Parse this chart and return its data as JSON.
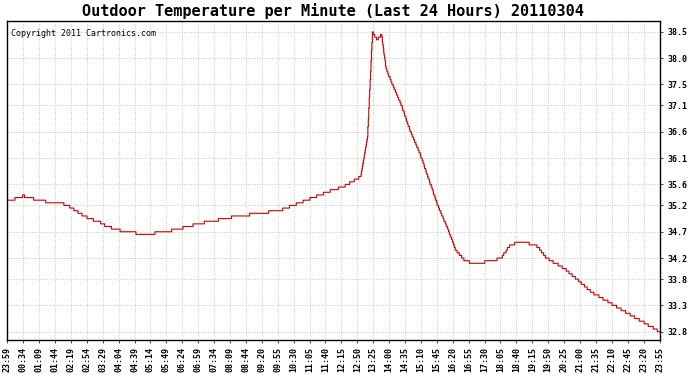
{
  "title": "Outdoor Temperature per Minute (Last 24 Hours) 20110304",
  "copyright_text": "Copyright 2011 Cartronics.com",
  "line_color": "#cc0000",
  "background_color": "#ffffff",
  "grid_color": "#bbbbbb",
  "yticks": [
    32.8,
    33.3,
    33.8,
    34.2,
    34.7,
    35.2,
    35.6,
    36.1,
    36.6,
    37.1,
    37.5,
    38.0,
    38.5
  ],
  "ylim": [
    32.65,
    38.7
  ],
  "xtick_labels": [
    "23:59",
    "00:34",
    "01:09",
    "01:44",
    "02:19",
    "02:54",
    "03:29",
    "04:04",
    "04:39",
    "05:14",
    "05:49",
    "06:24",
    "06:59",
    "07:34",
    "08:09",
    "08:44",
    "09:20",
    "09:55",
    "10:30",
    "11:05",
    "11:40",
    "12:15",
    "12:50",
    "13:25",
    "14:00",
    "14:35",
    "15:10",
    "15:45",
    "16:20",
    "16:55",
    "17:30",
    "18:05",
    "18:40",
    "19:15",
    "19:50",
    "20:25",
    "21:00",
    "21:35",
    "22:10",
    "22:45",
    "23:20",
    "23:55"
  ],
  "title_fontsize": 11,
  "tick_fontsize": 6,
  "copyright_fontsize": 6
}
